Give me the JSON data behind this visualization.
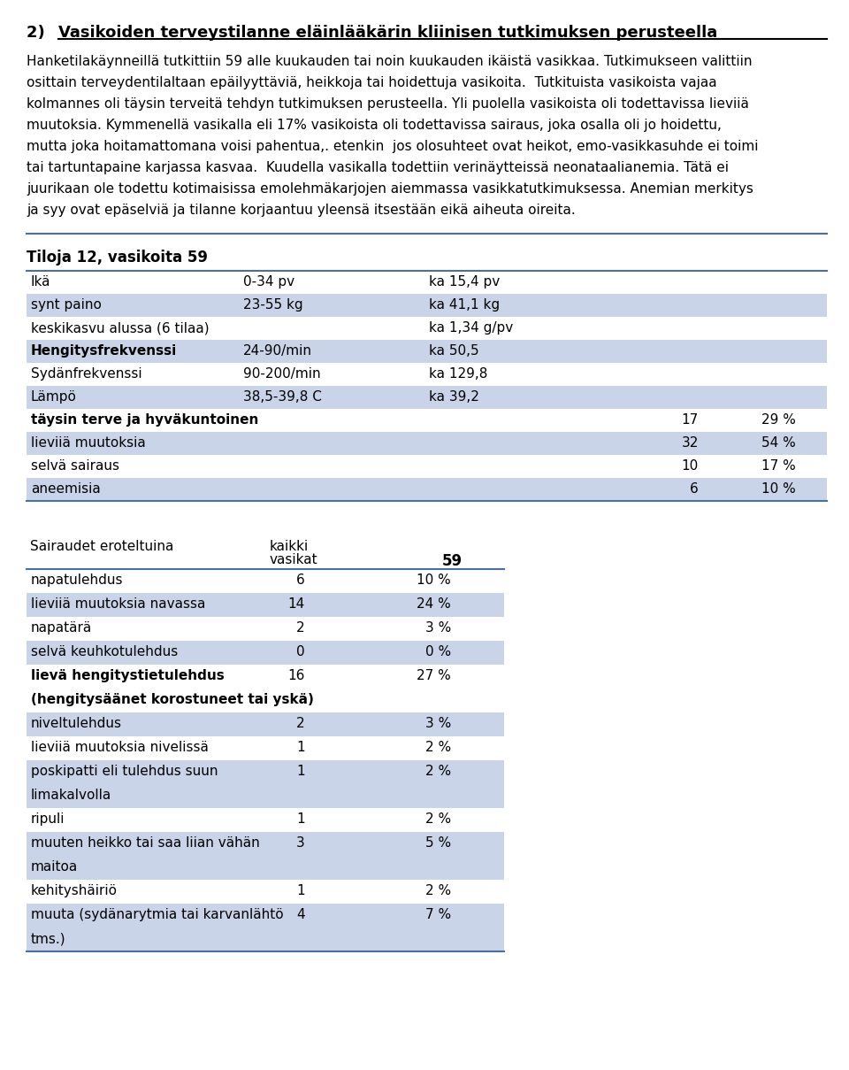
{
  "title_prefix": "2)   ",
  "title_main": "Vasikoiden terveystilanne eläinlääkärin kliinisen tutkimuksen perusteella",
  "body_lines": [
    "Hanketilakäynneillä tutkittiin 59 alle kuukauden tai noin kuukauden ikäistä vasikkaa. Tutkimukseen valittiin",
    "osittain terveydentilaltaan epäilyyttäviä, heikkoja tai hoidettuja vasikoita.  Tutkituista vasikoista vajaa",
    "kolmannes oli täysin terveitä tehdyn tutkimuksen perusteella. Yli puolella vasikoista oli todettavissa lieviiä",
    "muutoksia. Kymmenellä vasikalla eli 17% vasikoista oli todettavissa sairaus, joka osalla oli jo hoidettu,",
    "mutta joka hoitamattomana voisi pahentua,. etenkin  jos olosuhteet ovat heikot, emo-vasikkasuhde ei toimi",
    "tai tartuntapaine karjassa kasvaa.  Kuudella vasikalla todettiin verinäytteissä neonataalianemia. Tätä ei",
    "juurikaan ole todettu kotimaisissa emolehmäkarjojen aiemmassa vasikkatutkimuksessa. Anemian merkitys",
    "ja syy ovat epäselviä ja tilanne korjaantuu yleensä itsestään eikä aiheuta oireita."
  ],
  "table1_title": "Tiloja 12, vasikoita 59",
  "table1_rows": [
    {
      "label": "Ikä",
      "col2": "0-34 pv",
      "col3": "ka 15,4 pv",
      "col4": "",
      "col5": "",
      "bold": false,
      "shaded": false
    },
    {
      "label": "synt paino",
      "col2": "23-55 kg",
      "col3": "ka 41,1 kg",
      "col4": "",
      "col5": "",
      "bold": false,
      "shaded": true
    },
    {
      "label": "keskikasvu alussa (6 tilaa)",
      "col2": "",
      "col3": "ka 1,34 g/pv",
      "col4": "",
      "col5": "",
      "bold": false,
      "shaded": false
    },
    {
      "label": "Hengitysfrekvenssi",
      "col2": "24-90/min",
      "col3": "ka 50,5",
      "col4": "",
      "col5": "",
      "bold": true,
      "shaded": true
    },
    {
      "label": "Sydänfrekvenssi",
      "col2": "90-200/min",
      "col3": "ka 129,8",
      "col4": "",
      "col5": "",
      "bold": false,
      "shaded": false
    },
    {
      "label": "Lämpö",
      "col2": "38,5-39,8 C",
      "col3": "ka 39,2",
      "col4": "",
      "col5": "",
      "bold": false,
      "shaded": true
    },
    {
      "label": "täysin terve ja hyväkuntoinen",
      "col2": "",
      "col3": "",
      "col4": "17",
      "col5": "29 %",
      "bold": true,
      "shaded": false
    },
    {
      "label": "lieviiä muutoksia",
      "col2": "",
      "col3": "",
      "col4": "32",
      "col5": "54 %",
      "bold": false,
      "shaded": true
    },
    {
      "label": "selvä sairaus",
      "col2": "",
      "col3": "",
      "col4": "10",
      "col5": "17 %",
      "bold": false,
      "shaded": false
    },
    {
      "label": "aneemisia",
      "col2": "",
      "col3": "",
      "col4": "6",
      "col5": "10 %",
      "bold": false,
      "shaded": true
    }
  ],
  "table2_header_col1": "Sairaudet eroteltuina",
  "table2_header_col2a": "kaikki",
  "table2_header_col2b": "vasikat",
  "table2_header_col3": "59",
  "table2_rows": [
    {
      "label": "napatulehdus",
      "label2": "",
      "col2": "6",
      "col3": "10 %",
      "bold": false,
      "shaded": false
    },
    {
      "label": "lieviiä muutoksia navassa",
      "label2": "",
      "col2": "14",
      "col3": "24 %",
      "bold": false,
      "shaded": true
    },
    {
      "label": "napatärä",
      "label2": "",
      "col2": "2",
      "col3": "3 %",
      "bold": false,
      "shaded": false
    },
    {
      "label": "selvä keuhkotulehdus",
      "label2": "",
      "col2": "0",
      "col3": "0 %",
      "bold": false,
      "shaded": true
    },
    {
      "label": "lievä hengitystietulehdus",
      "label2": "(hengitysäänet korostuneet tai yskä)",
      "col2": "16",
      "col3": "27 %",
      "bold": true,
      "shaded": false
    },
    {
      "label": "niveltulehdus",
      "label2": "",
      "col2": "2",
      "col3": "3 %",
      "bold": false,
      "shaded": true
    },
    {
      "label": "lieviiä muutoksia nivelissä",
      "label2": "",
      "col2": "1",
      "col3": "2 %",
      "bold": false,
      "shaded": false
    },
    {
      "label": "poskipatti eli tulehdus suun",
      "label2": "limakalvolla",
      "col2": "1",
      "col3": "2 %",
      "bold": false,
      "shaded": true
    },
    {
      "label": "ripuli",
      "label2": "",
      "col2": "1",
      "col3": "2 %",
      "bold": false,
      "shaded": false
    },
    {
      "label": "muuten heikko tai saa liian vähän",
      "label2": "maitoa",
      "col2": "3",
      "col3": "5 %",
      "bold": false,
      "shaded": true
    },
    {
      "label": "kehityshäiriö",
      "label2": "",
      "col2": "1",
      "col3": "2 %",
      "bold": false,
      "shaded": false
    },
    {
      "label": "muuta (sydänarytmia tai karvanlähtö",
      "label2": "tms.)",
      "col2": "4",
      "col3": "7 %",
      "bold": false,
      "shaded": true
    }
  ],
  "shaded_color": "#c9d4e8",
  "line_color": "#4a6fa5",
  "bg_color": "#ffffff",
  "text_color": "#000000",
  "font_size": 11,
  "title_font_size": 13
}
